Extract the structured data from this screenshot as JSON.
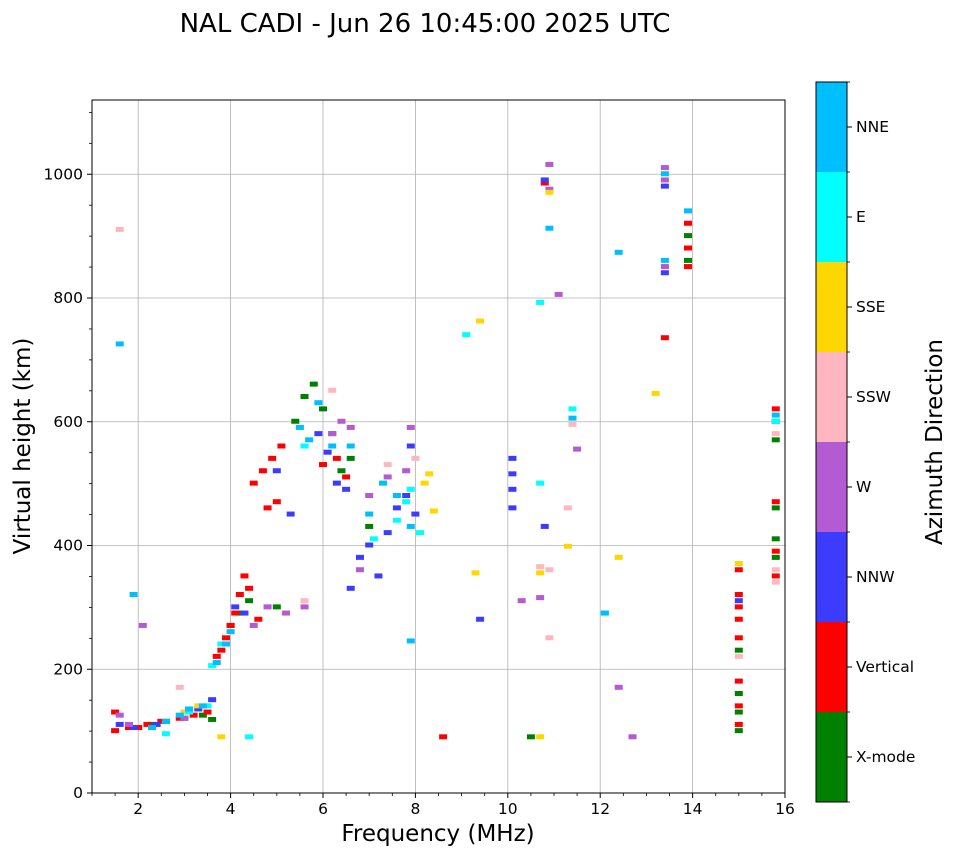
{
  "chart_data": {
    "type": "scatter",
    "title": "NAL CADI - Jun 26 10:45:00 2025 UTC",
    "xlabel": "Frequency (MHz)",
    "ylabel": "Virtual height (km)",
    "xlim": [
      1,
      16
    ],
    "ylim": [
      0,
      1120
    ],
    "xticks": [
      2,
      4,
      6,
      8,
      10,
      12,
      14,
      16
    ],
    "yticks": [
      0,
      200,
      400,
      600,
      800,
      1000
    ],
    "grid": true,
    "colorbar": {
      "title": "Azimuth Direction",
      "categories": [
        {
          "name": "X-mode",
          "color": "#008000"
        },
        {
          "name": "Vertical",
          "color": "#ff0000"
        },
        {
          "name": "NNW",
          "color": "#3c3cff"
        },
        {
          "name": "W",
          "color": "#b45ad2"
        },
        {
          "name": "SSW",
          "color": "#ffb6c1"
        },
        {
          "name": "SSE",
          "color": "#ffd700"
        },
        {
          "name": "E",
          "color": "#00ffff"
        },
        {
          "name": "NNE",
          "color": "#00bfff"
        }
      ]
    },
    "series": [
      {
        "name": "X-mode",
        "points": [
          [
            2.3,
            110
          ],
          [
            2.6,
            115
          ],
          [
            3.0,
            120
          ],
          [
            3.4,
            125
          ],
          [
            3.6,
            118
          ],
          [
            4.0,
            270
          ],
          [
            4.2,
            290
          ],
          [
            4.4,
            310
          ],
          [
            5.0,
            300
          ],
          [
            5.4,
            600
          ],
          [
            5.6,
            640
          ],
          [
            5.8,
            660
          ],
          [
            6.0,
            620
          ],
          [
            6.2,
            580
          ],
          [
            6.4,
            520
          ],
          [
            6.6,
            540
          ],
          [
            7.0,
            430
          ],
          [
            13.9,
            860
          ],
          [
            13.9,
            900
          ],
          [
            15.0,
            100
          ],
          [
            15.0,
            130
          ],
          [
            15.0,
            160
          ],
          [
            15.0,
            230
          ],
          [
            15.8,
            380
          ],
          [
            15.8,
            410
          ],
          [
            15.8,
            460
          ],
          [
            15.8,
            570
          ],
          [
            15.8,
            600
          ],
          [
            10.5,
            90
          ]
        ]
      },
      {
        "name": "Vertical",
        "points": [
          [
            1.5,
            100
          ],
          [
            1.5,
            130
          ],
          [
            1.8,
            105
          ],
          [
            2.0,
            105
          ],
          [
            2.2,
            110
          ],
          [
            2.5,
            115
          ],
          [
            2.9,
            120
          ],
          [
            3.2,
            125
          ],
          [
            3.5,
            130
          ],
          [
            3.7,
            220
          ],
          [
            3.8,
            230
          ],
          [
            3.9,
            250
          ],
          [
            4.0,
            270
          ],
          [
            4.1,
            290
          ],
          [
            4.2,
            320
          ],
          [
            4.3,
            350
          ],
          [
            4.4,
            330
          ],
          [
            4.6,
            280
          ],
          [
            4.5,
            500
          ],
          [
            4.7,
            520
          ],
          [
            4.9,
            540
          ],
          [
            5.1,
            560
          ],
          [
            4.8,
            460
          ],
          [
            5.0,
            470
          ],
          [
            6.0,
            530
          ],
          [
            6.3,
            540
          ],
          [
            6.5,
            510
          ],
          [
            8.6,
            90
          ],
          [
            10.8,
            985
          ],
          [
            13.4,
            735
          ],
          [
            13.9,
            850
          ],
          [
            13.9,
            880
          ],
          [
            13.9,
            920
          ],
          [
            15.0,
            110
          ],
          [
            15.0,
            140
          ],
          [
            15.0,
            180
          ],
          [
            15.0,
            250
          ],
          [
            15.0,
            280
          ],
          [
            15.0,
            300
          ],
          [
            15.0,
            320
          ],
          [
            15.0,
            360
          ],
          [
            15.8,
            350
          ],
          [
            15.8,
            390
          ],
          [
            15.8,
            470
          ],
          [
            15.8,
            620
          ]
        ]
      },
      {
        "name": "NNW",
        "points": [
          [
            1.6,
            110
          ],
          [
            1.9,
            105
          ],
          [
            2.4,
            110
          ],
          [
            3.3,
            135
          ],
          [
            3.6,
            150
          ],
          [
            4.1,
            300
          ],
          [
            4.3,
            290
          ],
          [
            5.0,
            520
          ],
          [
            5.3,
            450
          ],
          [
            5.9,
            580
          ],
          [
            6.1,
            550
          ],
          [
            6.3,
            500
          ],
          [
            6.5,
            490
          ],
          [
            6.6,
            330
          ],
          [
            6.8,
            380
          ],
          [
            7.0,
            400
          ],
          [
            7.2,
            350
          ],
          [
            7.4,
            420
          ],
          [
            7.6,
            460
          ],
          [
            7.8,
            480
          ],
          [
            8.0,
            450
          ],
          [
            7.9,
            560
          ],
          [
            9.4,
            280
          ],
          [
            10.1,
            540
          ],
          [
            10.1,
            515
          ],
          [
            10.1,
            490
          ],
          [
            10.1,
            460
          ],
          [
            10.8,
            430
          ],
          [
            10.8,
            990
          ],
          [
            13.4,
            980
          ],
          [
            13.4,
            840
          ],
          [
            15.0,
            310
          ]
        ]
      },
      {
        "name": "W",
        "points": [
          [
            1.6,
            125
          ],
          [
            1.8,
            110
          ],
          [
            2.1,
            270
          ],
          [
            3.0,
            120
          ],
          [
            4.5,
            270
          ],
          [
            4.8,
            300
          ],
          [
            5.2,
            290
          ],
          [
            5.6,
            300
          ],
          [
            6.2,
            580
          ],
          [
            6.4,
            600
          ],
          [
            6.6,
            590
          ],
          [
            6.8,
            360
          ],
          [
            7.0,
            480
          ],
          [
            7.4,
            510
          ],
          [
            7.8,
            520
          ],
          [
            7.9,
            590
          ],
          [
            10.3,
            310
          ],
          [
            10.7,
            315
          ],
          [
            10.9,
            1015
          ],
          [
            10.9,
            975
          ],
          [
            11.1,
            805
          ],
          [
            11.5,
            555
          ],
          [
            12.4,
            170
          ],
          [
            12.7,
            90
          ],
          [
            13.4,
            1010
          ],
          [
            13.4,
            990
          ],
          [
            13.4,
            850
          ]
        ]
      },
      {
        "name": "SSW",
        "points": [
          [
            1.6,
            910
          ],
          [
            2.9,
            170
          ],
          [
            5.6,
            310
          ],
          [
            6.2,
            650
          ],
          [
            7.4,
            530
          ],
          [
            8.0,
            540
          ],
          [
            10.7,
            365
          ],
          [
            10.9,
            250
          ],
          [
            10.9,
            360
          ],
          [
            11.3,
            460
          ],
          [
            11.4,
            595
          ],
          [
            15.0,
            220
          ],
          [
            15.8,
            340
          ],
          [
            15.8,
            360
          ],
          [
            15.8,
            580
          ]
        ]
      },
      {
        "name": "SSE",
        "points": [
          [
            3.0,
            130
          ],
          [
            3.3,
            140
          ],
          [
            3.8,
            90
          ],
          [
            8.2,
            500
          ],
          [
            8.3,
            515
          ],
          [
            8.4,
            455
          ],
          [
            9.3,
            355
          ],
          [
            9.4,
            762
          ],
          [
            10.7,
            90
          ],
          [
            10.7,
            355
          ],
          [
            10.9,
            970
          ],
          [
            11.3,
            398
          ],
          [
            12.4,
            380
          ],
          [
            13.2,
            645
          ],
          [
            15.0,
            370
          ]
        ]
      },
      {
        "name": "E",
        "points": [
          [
            2.6,
            95
          ],
          [
            3.1,
            130
          ],
          [
            3.5,
            140
          ],
          [
            3.6,
            205
          ],
          [
            3.8,
            240
          ],
          [
            4.4,
            90
          ],
          [
            5.6,
            560
          ],
          [
            7.1,
            410
          ],
          [
            7.6,
            440
          ],
          [
            7.8,
            470
          ],
          [
            7.9,
            490
          ],
          [
            8.1,
            420
          ],
          [
            9.1,
            740
          ],
          [
            10.7,
            792
          ],
          [
            10.7,
            500
          ],
          [
            11.4,
            620
          ],
          [
            12.1,
            290
          ],
          [
            15.8,
            600
          ]
        ]
      },
      {
        "name": "NNE",
        "points": [
          [
            1.6,
            725
          ],
          [
            1.9,
            320
          ],
          [
            2.3,
            105
          ],
          [
            2.6,
            115
          ],
          [
            2.9,
            125
          ],
          [
            3.1,
            135
          ],
          [
            3.4,
            140
          ],
          [
            3.7,
            210
          ],
          [
            3.9,
            240
          ],
          [
            4.0,
            260
          ],
          [
            5.5,
            590
          ],
          [
            5.7,
            570
          ],
          [
            5.9,
            630
          ],
          [
            6.2,
            560
          ],
          [
            6.6,
            560
          ],
          [
            7.0,
            450
          ],
          [
            7.3,
            500
          ],
          [
            7.6,
            480
          ],
          [
            7.9,
            245
          ],
          [
            7.9,
            430
          ],
          [
            10.9,
            912
          ],
          [
            11.4,
            605
          ],
          [
            12.1,
            290
          ],
          [
            12.4,
            873
          ],
          [
            13.4,
            1000
          ],
          [
            13.4,
            860
          ],
          [
            13.9,
            940
          ],
          [
            15.8,
            610
          ]
        ]
      }
    ]
  }
}
